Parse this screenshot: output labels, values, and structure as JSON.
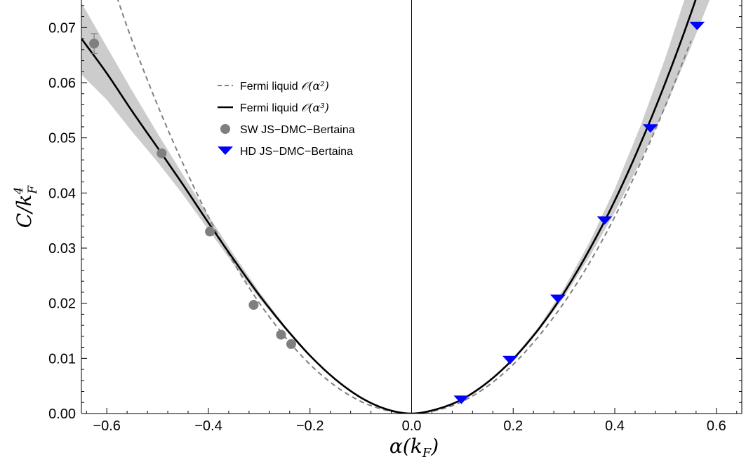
{
  "chart_data": {
    "type": "line",
    "xlabel": "α(k_F)",
    "ylabel": "C/k_F^4",
    "xlim": [
      -0.65,
      0.65
    ],
    "ylim": [
      0.0,
      0.075
    ],
    "x_ticks": [
      -0.6,
      -0.4,
      -0.2,
      0.0,
      0.2,
      0.4,
      0.6
    ],
    "x_tick_labels": [
      "−0.6",
      "−0.4",
      "−0.2",
      "0.0",
      "0.2",
      "0.4",
      "0.6"
    ],
    "y_ticks": [
      0.0,
      0.01,
      0.02,
      0.03,
      0.04,
      0.05,
      0.06,
      0.07
    ],
    "y_tick_labels": [
      "0.00",
      "0.01",
      "0.02",
      "0.03",
      "0.04",
      "0.05",
      "0.06",
      "0.07"
    ],
    "vertical_line_at": 0.0,
    "grid": false,
    "legend_position": "upper-left-center",
    "legend": [
      {
        "label": "Fermi liquid ",
        "math": "𝒪(α²)",
        "style": "dashed-line",
        "color": "#808080"
      },
      {
        "label": "Fermi liquid ",
        "math": "𝒪(α³)",
        "style": "solid-line",
        "color": "#000000"
      },
      {
        "label": "SW JS−DMC−Bertaina",
        "style": "circle-marker",
        "color": "#7f7f7f"
      },
      {
        "label": "HD JS−DMC−Bertaina",
        "style": "down-triangle-marker",
        "color": "#0000ff"
      }
    ],
    "series": [
      {
        "style": "dashed",
        "color": "#808080",
        "x": [
          -0.58,
          -0.55,
          -0.5,
          -0.45,
          -0.4,
          -0.35,
          -0.3,
          -0.25,
          -0.2,
          -0.15,
          -0.1,
          -0.05,
          0.0,
          0.05,
          0.1,
          0.15,
          0.2,
          0.25,
          0.3,
          0.35,
          0.4,
          0.45,
          0.5,
          0.55
        ],
        "y": [
          0.0755,
          0.0676,
          0.0559,
          0.0453,
          0.0357,
          0.0273,
          0.0201,
          0.014,
          0.0089,
          0.005,
          0.0022,
          0.0006,
          0.0,
          0.0006,
          0.0022,
          0.005,
          0.0089,
          0.014,
          0.0201,
          0.0273,
          0.0357,
          0.0453,
          0.0559,
          0.0676
        ]
      },
      {
        "style": "solid",
        "color": "#000000",
        "x": [
          -0.65,
          -0.6,
          -0.55,
          -0.5,
          -0.45,
          -0.4,
          -0.35,
          -0.3,
          -0.25,
          -0.2,
          -0.15,
          -0.1,
          -0.05,
          0.0,
          0.05,
          0.1,
          0.15,
          0.2,
          0.25,
          0.3,
          0.35,
          0.4,
          0.45,
          0.5,
          0.55,
          0.6
        ],
        "y": [
          0.068,
          0.0617,
          0.0548,
          0.0482,
          0.0415,
          0.0346,
          0.0279,
          0.0215,
          0.0157,
          0.0105,
          0.0062,
          0.0029,
          0.0008,
          0.0,
          0.0008,
          0.0026,
          0.0057,
          0.0099,
          0.0153,
          0.0219,
          0.0297,
          0.0386,
          0.0488,
          0.0601,
          0.0726,
          0.0863
        ]
      }
    ],
    "uncertainty_band": {
      "color": "#cccccc",
      "x": [
        -0.65,
        -0.6,
        -0.55,
        -0.5,
        -0.45,
        -0.4,
        -0.35,
        -0.3,
        -0.25,
        -0.2,
        -0.15,
        -0.1,
        -0.05,
        0.0,
        0.05,
        0.1,
        0.15,
        0.2,
        0.25,
        0.3,
        0.35,
        0.4,
        0.45,
        0.5,
        0.55,
        0.6
      ],
      "upper": [
        0.0745,
        0.0665,
        0.0585,
        0.0508,
        0.0433,
        0.0359,
        0.0288,
        0.0221,
        0.016,
        0.0107,
        0.0063,
        0.003,
        0.0008,
        0.0,
        0.0008,
        0.0027,
        0.0058,
        0.0101,
        0.0157,
        0.0227,
        0.031,
        0.0407,
        0.052,
        0.0646,
        0.0787,
        0.0945
      ],
      "lower": [
        0.0615,
        0.0569,
        0.0511,
        0.0456,
        0.0397,
        0.0333,
        0.027,
        0.0209,
        0.0154,
        0.0103,
        0.0061,
        0.0028,
        0.0008,
        0.0,
        0.0008,
        0.0025,
        0.0056,
        0.0097,
        0.0149,
        0.0211,
        0.0284,
        0.0365,
        0.0456,
        0.0556,
        0.0665,
        0.0781
      ]
    },
    "points": [
      {
        "name": "SW JS−DMC−Bertaina",
        "marker": "circle",
        "color": "#7f7f7f",
        "x": [
          -0.625,
          -0.492,
          -0.397,
          -0.311,
          -0.257,
          -0.237
        ],
        "y": [
          0.0671,
          0.0472,
          0.033,
          0.0197,
          0.0143,
          0.0126
        ],
        "yerr": [
          0.0018,
          0,
          0,
          0,
          0,
          0
        ]
      },
      {
        "name": "HD JS−DMC−Bertaina",
        "marker": "triangle-down",
        "color": "#0000ff",
        "x": [
          0.098,
          0.194,
          0.288,
          0.38,
          0.47,
          0.562
        ],
        "y": [
          0.0025,
          0.0097,
          0.0208,
          0.035,
          0.0517,
          0.0703
        ]
      }
    ]
  }
}
